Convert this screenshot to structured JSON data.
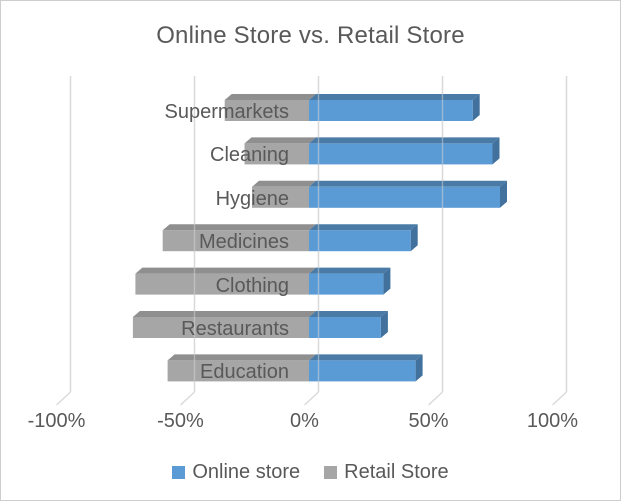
{
  "title": "Online Store vs. Retail Store",
  "chart_data": {
    "type": "bar",
    "subtype": "horizontal-diverging-3d",
    "title": "Online Store vs. Retail Store",
    "categories": [
      "Supermarkets",
      "Cleaning",
      "Hygiene",
      "Medicines",
      "Clothing",
      "Restaurants",
      "Education"
    ],
    "series": [
      {
        "name": "Online store",
        "color": "#5b9bd5",
        "values": [
          66,
          74,
          77,
          41,
          30,
          29,
          43
        ]
      },
      {
        "name": "Retail Store",
        "color": "#a6a6a6",
        "values": [
          -34,
          -26,
          -23,
          -59,
          -70,
          -71,
          -57
        ]
      }
    ],
    "value_unit": "%",
    "x_ticks": [
      {
        "label": "-100%",
        "value": -100
      },
      {
        "label": "-50%",
        "value": -50
      },
      {
        "label": "0%",
        "value": 0
      },
      {
        "label": "50%",
        "value": 50
      },
      {
        "label": "100%",
        "value": 100
      }
    ],
    "xlim": [
      -100,
      100
    ],
    "grid": true,
    "legend_position": "bottom"
  },
  "legend": {
    "items": [
      {
        "label": "Online store",
        "color": "#5b9bd5"
      },
      {
        "label": "Retail Store",
        "color": "#a6a6a6"
      }
    ]
  },
  "colors": {
    "text": "#595959",
    "gridline": "#d9d9d9",
    "chart_border": "#cdcdcd",
    "background": "#ffffff",
    "online_front": "#5b9bd5",
    "online_top": "#4a7ba6",
    "online_side": "#41719c",
    "retail_front": "#a6a6a6",
    "retail_top": "#8f8f8f",
    "retail_side": "#898989"
  }
}
